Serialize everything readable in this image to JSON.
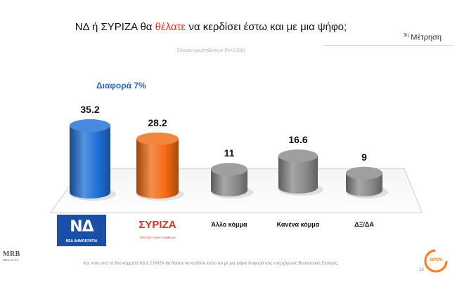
{
  "title": {
    "part1": "ΝΔ  ή ΣΥΡΙΖΑ θα ",
    "highlight": "θέλατε",
    "part2": " να κερδίσει έστω και με μια ψήφο;"
  },
  "measurement": {
    "sup": "3η",
    "label": "Μέτρηση"
  },
  "sample_note": "Σύνολο ερωτηθέντων (Ν=1000)",
  "difference_label": "Διαφορά 7%",
  "logos": {
    "nd": {
      "mark": "ΝΔ",
      "sub": "ΝΕΑ ΔΗΜΟΚΡΑΤΙΑ"
    },
    "syriza": {
      "mark": "ΣΥΡΙΖΑ",
      "sub": "ΠΡΟΟΔΕΥΤΙΚΗ ΣΥΜΜΑΧΙΑ"
    },
    "mrb": {
      "big": "MRB",
      "small": "HELLAS S.A."
    },
    "open": "OPEN"
  },
  "footer_note": "Και ποιο από τα δύο κόμματα ΝΔ ή ΣΥΡΙΖΑ θα θέλατε να κερδίσει έστω και με μια ψήφο διαφορά στις επερχόμενες Βουλευτικές Εκλογές;",
  "page_number": "13",
  "chart_data": {
    "type": "bar",
    "categories": [
      "ΝΔ",
      "ΣΥΡΙΖΑ",
      "Άλλο κόμμα",
      "Κανένα κόμμα",
      "ΔΞ/ΔΑ"
    ],
    "category_labels": [
      "",
      "",
      "Άλλο κόμμα",
      "Κανένα κόμμα",
      "ΔΞ/ΔΑ"
    ],
    "values": [
      35.2,
      28.2,
      11,
      16.6,
      9
    ],
    "value_labels": [
      "35.2",
      "28.2",
      "11",
      "16.6",
      "9"
    ],
    "colors": [
      "#1f6fd6",
      "#f26a12",
      "#8a8a8a",
      "#8a8a8a",
      "#8a8a8a"
    ],
    "ylim": [
      0,
      40
    ],
    "grid": false,
    "style": "3d-cylinder"
  }
}
